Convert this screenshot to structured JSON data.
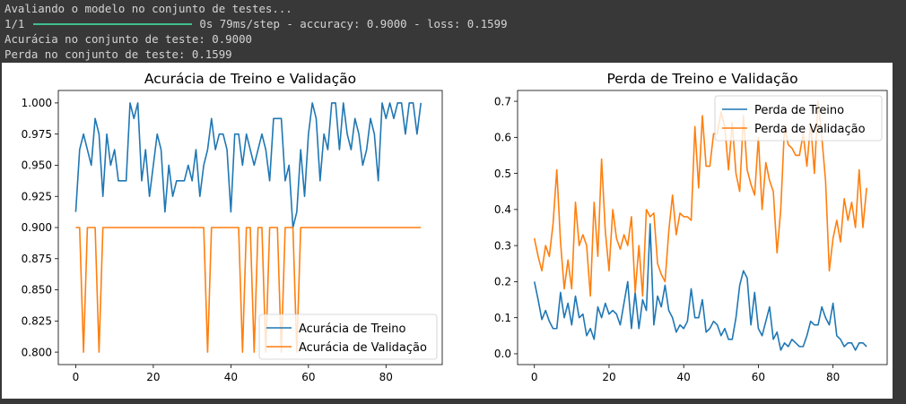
{
  "console": {
    "line1": "Avaliando o modelo no conjunto de testes...",
    "step": "1/1",
    "progress": 1.0,
    "step_stats": "0s 79ms/step - accuracy: 0.9000 - loss: 0.1599",
    "line3": "Acurácia no conjunto de teste: 0.9000",
    "line4": "Perda no conjunto de teste: 0.1599"
  },
  "chart_data": [
    {
      "type": "line",
      "title": "Acurácia de Treino e Validação",
      "xlabel": "",
      "ylabel": "",
      "xlim": [
        -4.5,
        94.5
      ],
      "ylim": [
        0.79,
        1.01
      ],
      "xticks": [
        0,
        20,
        40,
        60,
        80
      ],
      "yticks": [
        0.8,
        0.825,
        0.85,
        0.875,
        0.9,
        0.925,
        0.95,
        0.975,
        1.0
      ],
      "ytick_labels": [
        "0.800",
        "0.825",
        "0.850",
        "0.875",
        "0.900",
        "0.925",
        "0.950",
        "0.975",
        "1.000"
      ],
      "legend_position": "lower right",
      "grid": false,
      "series": [
        {
          "name": "Acurácia de Treino",
          "color": "#1f77b4",
          "x": [
            0,
            1,
            2,
            3,
            4,
            5,
            6,
            7,
            8,
            9,
            10,
            11,
            12,
            13,
            14,
            15,
            16,
            17,
            18,
            19,
            20,
            21,
            22,
            23,
            24,
            25,
            26,
            27,
            28,
            29,
            30,
            31,
            32,
            33,
            34,
            35,
            36,
            37,
            38,
            39,
            40,
            41,
            42,
            43,
            44,
            45,
            46,
            47,
            48,
            49,
            50,
            51,
            52,
            53,
            54,
            55,
            56,
            57,
            58,
            59,
            60,
            61,
            62,
            63,
            64,
            65,
            66,
            67,
            68,
            69,
            70,
            71,
            72,
            73,
            74,
            75,
            76,
            77,
            78,
            79,
            80,
            81,
            82,
            83,
            84,
            85,
            86,
            87,
            88,
            89
          ],
          "values": [
            0.9125,
            0.9625,
            0.975,
            0.9625,
            0.95,
            0.9875,
            0.975,
            0.925,
            0.975,
            0.95,
            0.9625,
            0.9375,
            0.9375,
            0.9375,
            1.0,
            0.9875,
            1.0,
            0.9375,
            0.9625,
            0.925,
            0.95,
            0.975,
            0.9625,
            0.9125,
            0.95,
            0.925,
            0.9375,
            0.9375,
            0.9375,
            0.95,
            0.9375,
            0.9625,
            0.925,
            0.95,
            0.9625,
            0.9875,
            0.9625,
            0.975,
            0.975,
            0.9625,
            0.9125,
            0.975,
            0.975,
            0.95,
            0.975,
            0.9625,
            0.95,
            0.9625,
            0.975,
            0.9625,
            0.9375,
            0.9875,
            0.9875,
            0.9875,
            0.9375,
            0.95,
            0.9,
            0.9125,
            0.9625,
            0.925,
            0.975,
            1.0,
            0.9875,
            0.9375,
            0.975,
            0.9625,
            1.0,
            1.0,
            0.9625,
            1.0,
            0.975,
            0.9625,
            0.9875,
            0.975,
            0.95,
            0.9625,
            0.9875,
            0.975,
            0.9375,
            1.0,
            0.9875,
            1.0,
            0.9875,
            1.0,
            1.0,
            0.975,
            1.0,
            1.0,
            0.975,
            1.0
          ]
        },
        {
          "name": "Acurácia de Validação",
          "color": "#ff7f0e",
          "x": [
            0,
            1,
            2,
            3,
            4,
            5,
            6,
            7,
            8,
            9,
            10,
            11,
            12,
            13,
            14,
            15,
            16,
            17,
            18,
            19,
            20,
            21,
            22,
            23,
            24,
            25,
            26,
            27,
            28,
            29,
            30,
            31,
            32,
            33,
            34,
            35,
            36,
            37,
            38,
            39,
            40,
            41,
            42,
            43,
            44,
            45,
            46,
            47,
            48,
            49,
            50,
            51,
            52,
            53,
            54,
            55,
            56,
            57,
            58,
            59,
            60,
            61,
            62,
            63,
            64,
            65,
            66,
            67,
            68,
            69,
            70,
            71,
            72,
            73,
            74,
            75,
            76,
            77,
            78,
            79,
            80,
            81,
            82,
            83,
            84,
            85,
            86,
            87,
            88,
            89
          ],
          "values": [
            0.9,
            0.9,
            0.8,
            0.9,
            0.9,
            0.9,
            0.8,
            0.9,
            0.9,
            0.9,
            0.9,
            0.9,
            0.9,
            0.9,
            0.9,
            0.9,
            0.9,
            0.9,
            0.9,
            0.9,
            0.9,
            0.9,
            0.9,
            0.9,
            0.9,
            0.9,
            0.9,
            0.9,
            0.9,
            0.9,
            0.9,
            0.9,
            0.9,
            0.9,
            0.8,
            0.9,
            0.9,
            0.9,
            0.9,
            0.9,
            0.9,
            0.9,
            0.9,
            0.8,
            0.9,
            0.9,
            0.8,
            0.9,
            0.9,
            0.8,
            0.9,
            0.9,
            0.9,
            0.8,
            0.9,
            0.9,
            0.9,
            0.8,
            0.9,
            0.9,
            0.9,
            0.9,
            0.9,
            0.9,
            0.9,
            0.9,
            0.9,
            0.9,
            0.9,
            0.9,
            0.9,
            0.9,
            0.9,
            0.9,
            0.9,
            0.9,
            0.9,
            0.9,
            0.9,
            0.9,
            0.9,
            0.9,
            0.9,
            0.9,
            0.9,
            0.9,
            0.9,
            0.9,
            0.9,
            0.9
          ]
        }
      ]
    },
    {
      "type": "line",
      "title": "Perda de Treino e Validação",
      "xlabel": "",
      "ylabel": "",
      "xlim": [
        -4.5,
        94.5
      ],
      "ylim": [
        -0.03,
        0.73
      ],
      "xticks": [
        0,
        20,
        40,
        60,
        80
      ],
      "yticks": [
        0.0,
        0.1,
        0.2,
        0.3,
        0.4,
        0.5,
        0.6,
        0.7
      ],
      "ytick_labels": [
        "0.0",
        "0.1",
        "0.2",
        "0.3",
        "0.4",
        "0.5",
        "0.6",
        "0.7"
      ],
      "legend_position": "upper right",
      "grid": false,
      "series": [
        {
          "name": "Perda de Treino",
          "color": "#1f77b4",
          "x": [
            0,
            1,
            2,
            3,
            4,
            5,
            6,
            7,
            8,
            9,
            10,
            11,
            12,
            13,
            14,
            15,
            16,
            17,
            18,
            19,
            20,
            21,
            22,
            23,
            24,
            25,
            26,
            27,
            28,
            29,
            30,
            31,
            32,
            33,
            34,
            35,
            36,
            37,
            38,
            39,
            40,
            41,
            42,
            43,
            44,
            45,
            46,
            47,
            48,
            49,
            50,
            51,
            52,
            53,
            54,
            55,
            56,
            57,
            58,
            59,
            60,
            61,
            62,
            63,
            64,
            65,
            66,
            67,
            68,
            69,
            70,
            71,
            72,
            73,
            74,
            75,
            76,
            77,
            78,
            79,
            80,
            81,
            82,
            83,
            84,
            85,
            86,
            87,
            88,
            89
          ],
          "values": [
            0.2,
            0.15,
            0.095,
            0.12,
            0.09,
            0.07,
            0.07,
            0.17,
            0.1,
            0.14,
            0.08,
            0.16,
            0.1,
            0.11,
            0.05,
            0.07,
            0.04,
            0.13,
            0.1,
            0.14,
            0.11,
            0.12,
            0.11,
            0.08,
            0.14,
            0.2,
            0.07,
            0.17,
            0.07,
            0.15,
            0.12,
            0.36,
            0.08,
            0.16,
            0.13,
            0.19,
            0.12,
            0.1,
            0.06,
            0.08,
            0.07,
            0.09,
            0.18,
            0.1,
            0.1,
            0.15,
            0.06,
            0.07,
            0.09,
            0.08,
            0.05,
            0.07,
            0.04,
            0.04,
            0.1,
            0.19,
            0.23,
            0.21,
            0.08,
            0.17,
            0.07,
            0.05,
            0.09,
            0.13,
            0.04,
            0.06,
            0.01,
            0.03,
            0.02,
            0.04,
            0.03,
            0.02,
            0.02,
            0.05,
            0.09,
            0.08,
            0.08,
            0.13,
            0.1,
            0.08,
            0.14,
            0.05,
            0.04,
            0.02,
            0.03,
            0.03,
            0.01,
            0.03,
            0.03,
            0.02
          ]
        },
        {
          "name": "Perda de Validação",
          "color": "#ff7f0e",
          "x": [
            0,
            1,
            2,
            3,
            4,
            5,
            6,
            7,
            8,
            9,
            10,
            11,
            12,
            13,
            14,
            15,
            16,
            17,
            18,
            19,
            20,
            21,
            22,
            23,
            24,
            25,
            26,
            27,
            28,
            29,
            30,
            31,
            32,
            33,
            34,
            35,
            36,
            37,
            38,
            39,
            40,
            41,
            42,
            43,
            44,
            45,
            46,
            47,
            48,
            49,
            50,
            51,
            52,
            53,
            54,
            55,
            56,
            57,
            58,
            59,
            60,
            61,
            62,
            63,
            64,
            65,
            66,
            67,
            68,
            69,
            70,
            71,
            72,
            73,
            74,
            75,
            76,
            77,
            78,
            79,
            80,
            81,
            82,
            83,
            84,
            85,
            86,
            87,
            88,
            89
          ],
          "values": [
            0.32,
            0.27,
            0.23,
            0.3,
            0.27,
            0.36,
            0.51,
            0.31,
            0.18,
            0.26,
            0.18,
            0.42,
            0.3,
            0.33,
            0.3,
            0.16,
            0.42,
            0.27,
            0.54,
            0.34,
            0.23,
            0.4,
            0.32,
            0.29,
            0.33,
            0.3,
            0.38,
            0.17,
            0.3,
            0.16,
            0.4,
            0.38,
            0.39,
            0.25,
            0.22,
            0.2,
            0.34,
            0.44,
            0.33,
            0.39,
            0.38,
            0.38,
            0.37,
            0.63,
            0.46,
            0.66,
            0.52,
            0.52,
            0.61,
            0.61,
            0.67,
            0.63,
            0.51,
            0.64,
            0.5,
            0.45,
            0.66,
            0.51,
            0.47,
            0.44,
            0.6,
            0.4,
            0.53,
            0.48,
            0.45,
            0.28,
            0.4,
            0.63,
            0.58,
            0.57,
            0.55,
            0.55,
            0.61,
            0.52,
            0.64,
            0.5,
            0.7,
            0.6,
            0.48,
            0.23,
            0.32,
            0.37,
            0.31,
            0.43,
            0.37,
            0.42,
            0.35,
            0.51,
            0.35,
            0.46
          ]
        }
      ]
    }
  ]
}
